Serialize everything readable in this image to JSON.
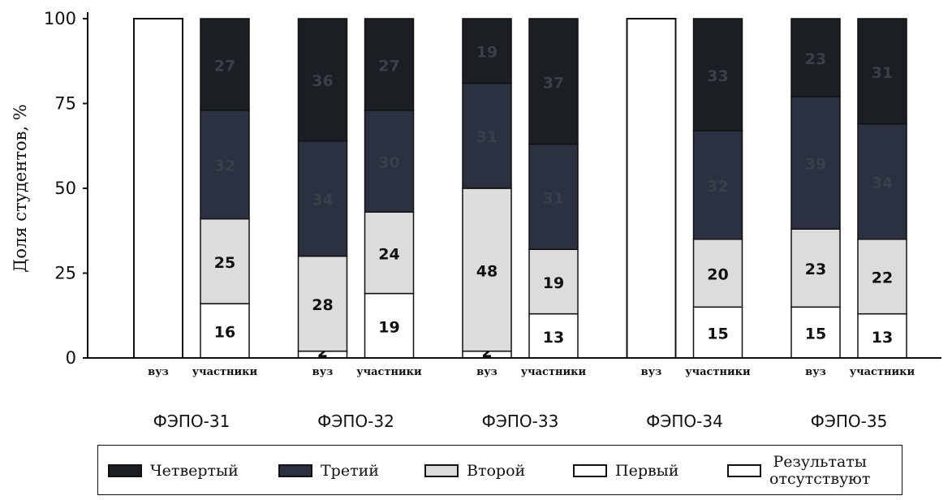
{
  "chart_data": {
    "type": "bar",
    "stacked": true,
    "ylabel": "Доля студентов, %",
    "ylim": [
      0,
      100
    ],
    "yticks": [
      0,
      25,
      50,
      75,
      100
    ],
    "groups": [
      {
        "label": "ФЭПО-31",
        "bars": [
          {
            "label": "вуз",
            "missing": true
          },
          {
            "label": "участники",
            "values": {
              "first": 16,
              "second": 25,
              "third": 32,
              "fourth": 27
            }
          }
        ]
      },
      {
        "label": "ФЭПО-32",
        "bars": [
          {
            "label": "вуз",
            "values": {
              "first": 2,
              "second": 28,
              "third": 34,
              "fourth": 36
            }
          },
          {
            "label": "участники",
            "values": {
              "first": 19,
              "second": 24,
              "third": 30,
              "fourth": 27
            }
          }
        ]
      },
      {
        "label": "ФЭПО-33",
        "bars": [
          {
            "label": "вуз",
            "values": {
              "first": 2,
              "second": 48,
              "third": 31,
              "fourth": 19
            }
          },
          {
            "label": "участники",
            "values": {
              "first": 13,
              "second": 19,
              "third": 31,
              "fourth": 37
            }
          }
        ]
      },
      {
        "label": "ФЭПО-34",
        "bars": [
          {
            "label": "вуз",
            "missing": true
          },
          {
            "label": "участники",
            "values": {
              "first": 15,
              "second": 20,
              "third": 32,
              "fourth": 33
            }
          }
        ]
      },
      {
        "label": "ФЭПО-35",
        "bars": [
          {
            "label": "вуз",
            "values": {
              "first": 15,
              "second": 23,
              "third": 39,
              "fourth": 23
            }
          },
          {
            "label": "участники",
            "values": {
              "first": 13,
              "second": 22,
              "third": 34,
              "fourth": 31
            }
          }
        ]
      }
    ],
    "series": [
      {
        "key": "fourth",
        "name": "Четвертый",
        "color": "#1b1f24"
      },
      {
        "key": "third",
        "name": "Третий",
        "color": "#2b3140"
      },
      {
        "key": "second",
        "name": "Второй",
        "color": "#dcdcdc"
      },
      {
        "key": "first",
        "name": "Первый",
        "color": "#ffffff"
      },
      {
        "key": "missing",
        "name": "Результаты\nотсутствуют",
        "color": "#ffffff"
      }
    ],
    "legend_position": "bottom"
  }
}
